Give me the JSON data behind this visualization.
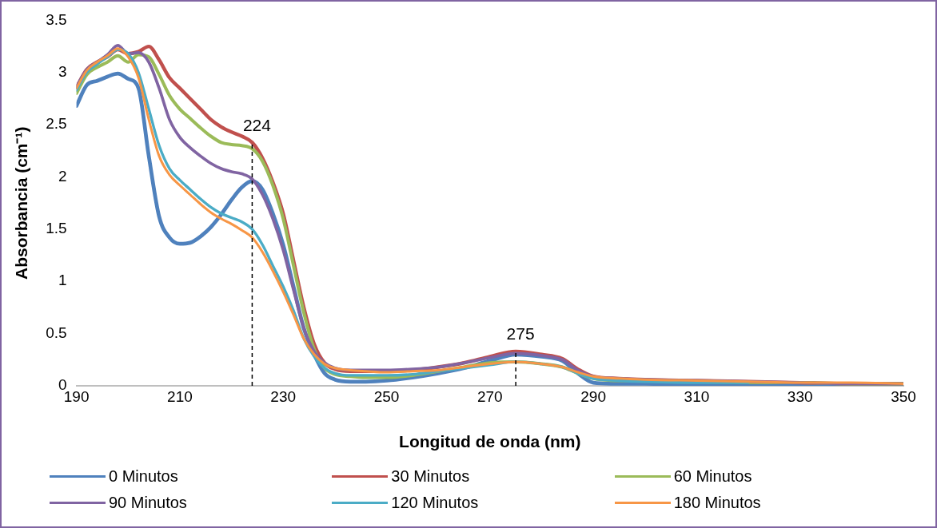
{
  "chart_data": {
    "type": "line",
    "xlabel": "Longitud de onda (nm)",
    "ylabel": "Absorbancia (cm⁻¹)",
    "x": [
      190,
      192,
      194,
      196,
      198,
      200,
      202,
      204,
      206,
      208,
      210,
      212,
      214,
      216,
      218,
      220,
      222,
      224,
      226,
      228,
      230,
      232,
      234,
      236,
      238,
      240,
      243,
      246,
      250,
      255,
      260,
      265,
      270,
      275,
      280,
      284,
      287,
      290,
      295,
      300,
      310,
      320,
      330,
      340,
      350
    ],
    "series": [
      {
        "name": "0 Minutos",
        "color": "#4f81bd",
        "values": [
          2.68,
          2.88,
          2.92,
          2.96,
          2.99,
          2.94,
          2.85,
          2.2,
          1.62,
          1.42,
          1.36,
          1.37,
          1.43,
          1.52,
          1.64,
          1.78,
          1.9,
          1.96,
          1.88,
          1.65,
          1.35,
          0.95,
          0.55,
          0.3,
          0.12,
          0.06,
          0.04,
          0.04,
          0.05,
          0.08,
          0.12,
          0.17,
          0.24,
          0.3,
          0.28,
          0.24,
          0.12,
          0.03,
          0.02,
          0.02,
          0.01,
          0.01,
          0.01,
          0.01,
          0.01
        ]
      },
      {
        "name": "30 Minutos",
        "color": "#c0504d",
        "values": [
          2.86,
          3.03,
          3.1,
          3.15,
          3.22,
          3.18,
          3.2,
          3.25,
          3.12,
          2.95,
          2.85,
          2.75,
          2.65,
          2.55,
          2.48,
          2.43,
          2.39,
          2.33,
          2.18,
          1.95,
          1.65,
          1.2,
          0.75,
          0.4,
          0.22,
          0.16,
          0.14,
          0.14,
          0.14,
          0.15,
          0.18,
          0.22,
          0.28,
          0.33,
          0.3,
          0.26,
          0.16,
          0.09,
          0.07,
          0.06,
          0.05,
          0.04,
          0.03,
          0.02,
          0.02
        ]
      },
      {
        "name": "60 Minutos",
        "color": "#9bbb59",
        "values": [
          2.8,
          2.98,
          3.05,
          3.1,
          3.16,
          3.1,
          3.17,
          3.15,
          2.98,
          2.78,
          2.65,
          2.56,
          2.47,
          2.39,
          2.33,
          2.31,
          2.3,
          2.27,
          2.15,
          1.92,
          1.6,
          1.15,
          0.7,
          0.35,
          0.17,
          0.11,
          0.09,
          0.08,
          0.08,
          0.1,
          0.14,
          0.18,
          0.22,
          0.23,
          0.21,
          0.18,
          0.12,
          0.07,
          0.05,
          0.05,
          0.04,
          0.03,
          0.03,
          0.02,
          0.02
        ]
      },
      {
        "name": "90 Minutos",
        "color": "#8064a2",
        "values": [
          2.86,
          3.03,
          3.1,
          3.17,
          3.26,
          3.18,
          3.19,
          3.1,
          2.85,
          2.55,
          2.38,
          2.28,
          2.2,
          2.13,
          2.08,
          2.05,
          2.03,
          1.98,
          1.83,
          1.6,
          1.3,
          0.92,
          0.55,
          0.33,
          0.22,
          0.17,
          0.15,
          0.15,
          0.15,
          0.16,
          0.18,
          0.22,
          0.27,
          0.31,
          0.29,
          0.25,
          0.15,
          0.09,
          0.07,
          0.06,
          0.05,
          0.04,
          0.03,
          0.02,
          0.02
        ]
      },
      {
        "name": "120 Minutos",
        "color": "#4bacc6",
        "values": [
          2.83,
          3.0,
          3.08,
          3.15,
          3.22,
          3.18,
          3.0,
          2.65,
          2.3,
          2.08,
          1.97,
          1.88,
          1.79,
          1.71,
          1.65,
          1.61,
          1.57,
          1.5,
          1.35,
          1.15,
          0.95,
          0.72,
          0.45,
          0.28,
          0.17,
          0.12,
          0.1,
          0.1,
          0.1,
          0.11,
          0.14,
          0.17,
          0.2,
          0.23,
          0.21,
          0.18,
          0.12,
          0.07,
          0.05,
          0.04,
          0.03,
          0.03,
          null,
          null,
          null
        ]
      },
      {
        "name": "180 Minutos",
        "color": "#f79646",
        "values": [
          2.85,
          3.02,
          3.1,
          3.16,
          3.23,
          3.15,
          2.95,
          2.55,
          2.2,
          2.02,
          1.92,
          1.83,
          1.74,
          1.66,
          1.6,
          1.55,
          1.49,
          1.42,
          1.28,
          1.1,
          0.9,
          0.68,
          0.45,
          0.3,
          0.21,
          0.17,
          0.15,
          0.14,
          0.13,
          0.14,
          0.15,
          0.18,
          0.21,
          0.23,
          0.21,
          0.18,
          0.13,
          0.09,
          0.07,
          0.06,
          0.05,
          0.04,
          0.03,
          0.03,
          0.02
        ]
      }
    ],
    "xlim": [
      190,
      350
    ],
    "xticks": [
      190,
      210,
      230,
      250,
      270,
      290,
      310,
      330,
      350
    ],
    "ylim": [
      0,
      3.5
    ],
    "yticks": [
      0,
      0.5,
      1,
      1.5,
      2,
      2.5,
      3,
      3.5
    ],
    "ref_lines": [
      {
        "axis": "x",
        "value": 224,
        "label": "224",
        "color": "#000000",
        "line_style": "dashed"
      },
      {
        "axis": "x",
        "value": 275,
        "label": "275",
        "color": "#000000",
        "line_style": "dashed"
      }
    ],
    "grid": false,
    "legend": "bottom",
    "marker": "none",
    "line_style": "solid"
  }
}
